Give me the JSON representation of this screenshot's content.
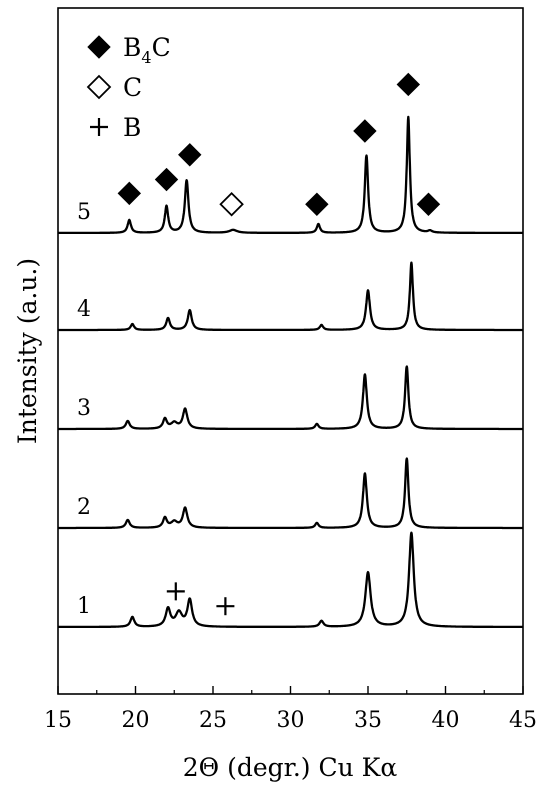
{
  "chart_data": {
    "type": "line",
    "title": "",
    "xlabel": "2Θ (degr.) Cu Kα",
    "ylabel": "Intensity (a.u.)",
    "xlim": [
      15,
      45
    ],
    "x_ticks": [
      "15",
      "20",
      "25",
      "30",
      "35",
      "40",
      "45"
    ],
    "y_ticks": [],
    "grid": false,
    "legend_position": "top-left",
    "legend": [
      {
        "symbol": "filled-diamond",
        "label_main": "B",
        "label_sub": "4",
        "label_end": "C"
      },
      {
        "symbol": "open-diamond",
        "label_main": "C",
        "label_sub": "",
        "label_end": ""
      },
      {
        "symbol": "plus",
        "label_main": "B",
        "label_sub": "",
        "label_end": ""
      }
    ],
    "series": [
      {
        "name": "1",
        "baseline": 0.0,
        "peaks": [
          [
            19.8,
            0.1,
            0.15
          ],
          [
            22.1,
            0.18,
            0.18
          ],
          [
            22.8,
            0.14,
            0.25
          ],
          [
            23.5,
            0.27,
            0.18
          ],
          [
            32.0,
            0.06,
            0.15
          ],
          [
            35.0,
            0.55,
            0.2
          ],
          [
            37.8,
            0.95,
            0.18
          ]
        ]
      },
      {
        "name": "2",
        "baseline": 1.0,
        "peaks": [
          [
            19.5,
            0.08,
            0.15
          ],
          [
            21.9,
            0.1,
            0.15
          ],
          [
            22.5,
            0.06,
            0.25
          ],
          [
            23.2,
            0.2,
            0.17
          ],
          [
            31.7,
            0.05,
            0.13
          ],
          [
            34.8,
            0.55,
            0.15
          ],
          [
            37.5,
            0.7,
            0.13
          ]
        ]
      },
      {
        "name": "3",
        "baseline": 2.0,
        "peaks": [
          [
            19.5,
            0.08,
            0.15
          ],
          [
            21.9,
            0.1,
            0.15
          ],
          [
            22.5,
            0.06,
            0.25
          ],
          [
            23.2,
            0.2,
            0.17
          ],
          [
            31.7,
            0.05,
            0.13
          ],
          [
            34.8,
            0.55,
            0.15
          ],
          [
            37.5,
            0.63,
            0.13
          ]
        ]
      },
      {
        "name": "4",
        "baseline": 3.0,
        "peaks": [
          [
            19.8,
            0.06,
            0.13
          ],
          [
            22.1,
            0.12,
            0.14
          ],
          [
            23.5,
            0.2,
            0.15
          ],
          [
            32.0,
            0.05,
            0.13
          ],
          [
            35.0,
            0.4,
            0.15
          ],
          [
            37.8,
            0.68,
            0.12
          ]
        ]
      },
      {
        "name": "5",
        "baseline": 3.98,
        "peaks": [
          [
            19.6,
            0.13,
            0.13
          ],
          [
            22.0,
            0.27,
            0.13
          ],
          [
            23.3,
            0.53,
            0.14
          ],
          [
            26.3,
            0.03,
            0.3
          ],
          [
            31.8,
            0.09,
            0.12
          ],
          [
            34.9,
            0.78,
            0.13
          ],
          [
            37.6,
            1.17,
            0.12
          ],
          [
            39.0,
            0.02,
            0.15
          ]
        ]
      }
    ],
    "markers": [
      {
        "type": "filled-diamond",
        "x": 19.6,
        "y": 4.38
      },
      {
        "type": "filled-diamond",
        "x": 22.0,
        "y": 4.52
      },
      {
        "type": "filled-diamond",
        "x": 23.5,
        "y": 4.77
      },
      {
        "type": "open-diamond",
        "x": 26.2,
        "y": 4.27
      },
      {
        "type": "filled-diamond",
        "x": 31.7,
        "y": 4.27
      },
      {
        "type": "filled-diamond",
        "x": 34.8,
        "y": 5.01
      },
      {
        "type": "filled-diamond",
        "x": 37.6,
        "y": 5.48
      },
      {
        "type": "filled-diamond",
        "x": 38.9,
        "y": 4.27
      },
      {
        "type": "plus",
        "x": 22.6,
        "y": 0.36
      },
      {
        "type": "plus",
        "x": 25.8,
        "y": 0.21
      }
    ]
  }
}
